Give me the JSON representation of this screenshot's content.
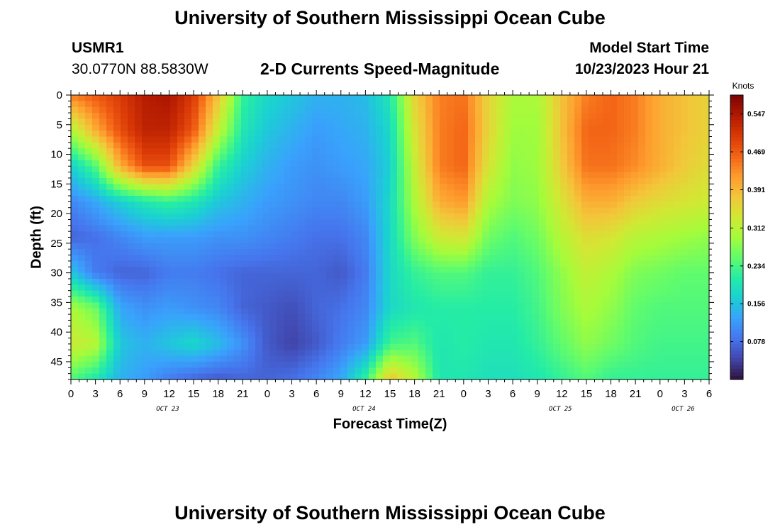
{
  "header": {
    "title": "University of Southern Mississippi Ocean Cube",
    "station_id": "USMR1",
    "coords": "30.0770N  88.5830W",
    "subtitle": "2-D Currents Speed-Magnitude",
    "start_label": "Model Start Time",
    "start_value": "10/23/2023 Hour 21"
  },
  "footer": {
    "title": "University of Southern Mississippi Ocean Cube"
  },
  "chart_data": {
    "type": "heatmap",
    "title": "2-D Currents Speed-Magnitude",
    "xlabel": "Forecast Time(Z)",
    "ylabel": "Depth (ft)",
    "x_tick_labels": [
      "0",
      "3",
      "6",
      "9",
      "12",
      "15",
      "18",
      "21",
      "0",
      "3",
      "6",
      "9",
      "12",
      "15",
      "18",
      "21",
      "0",
      "3",
      "6",
      "9",
      "12",
      "15",
      "18",
      "21",
      "0",
      "3",
      "6"
    ],
    "x_date_labels": [
      {
        "label": "OCT 23",
        "tick_index": 4
      },
      {
        "label": "OCT 24",
        "tick_index": 12
      },
      {
        "label": "OCT 25",
        "tick_index": 20
      },
      {
        "label": "OCT 26",
        "tick_index": 25
      }
    ],
    "y_ticks": [
      0,
      5,
      10,
      15,
      20,
      25,
      30,
      35,
      40,
      45
    ],
    "y_range": [
      0,
      48
    ],
    "x_range_hours": [
      0,
      78
    ],
    "colorbar": {
      "unit": "Knots",
      "ticks": [
        "0.547",
        "0.469",
        "0.391",
        "0.312",
        "0.234",
        "0.156",
        "0.078"
      ],
      "range": [
        0.0,
        0.586
      ],
      "colors": [
        "#30123b",
        "#4145ab",
        "#4675ed",
        "#39a2fc",
        "#1bcfd4",
        "#24eca6",
        "#61fc6c",
        "#a4fc3b",
        "#d1e834",
        "#f3c63a",
        "#fe9b2d",
        "#f36315",
        "#d93806",
        "#b11901",
        "#7a0403"
      ]
    },
    "depth_ft": [
      0,
      6,
      12,
      18,
      24,
      30,
      36,
      42,
      48
    ],
    "time_hours": [
      0,
      3,
      6,
      9,
      12,
      15,
      18,
      21,
      24,
      27,
      30,
      33,
      36,
      39,
      42,
      45,
      48,
      51,
      54,
      57,
      60,
      63,
      66,
      69,
      72,
      75,
      78
    ],
    "speed_knots": [
      [
        0.44,
        0.47,
        0.5,
        0.54,
        0.55,
        0.5,
        0.38,
        0.22,
        0.18,
        0.16,
        0.14,
        0.14,
        0.15,
        0.2,
        0.36,
        0.44,
        0.45,
        0.36,
        0.3,
        0.3,
        0.38,
        0.44,
        0.46,
        0.44,
        0.4,
        0.38,
        0.36
      ],
      [
        0.3,
        0.4,
        0.48,
        0.53,
        0.53,
        0.47,
        0.32,
        0.2,
        0.16,
        0.14,
        0.12,
        0.13,
        0.14,
        0.18,
        0.34,
        0.44,
        0.46,
        0.36,
        0.29,
        0.29,
        0.38,
        0.46,
        0.46,
        0.44,
        0.4,
        0.38,
        0.36
      ],
      [
        0.17,
        0.24,
        0.4,
        0.48,
        0.48,
        0.36,
        0.22,
        0.17,
        0.14,
        0.12,
        0.11,
        0.12,
        0.13,
        0.17,
        0.32,
        0.44,
        0.46,
        0.34,
        0.28,
        0.29,
        0.37,
        0.45,
        0.45,
        0.43,
        0.4,
        0.37,
        0.35
      ],
      [
        0.1,
        0.13,
        0.17,
        0.2,
        0.22,
        0.2,
        0.16,
        0.14,
        0.12,
        0.11,
        0.1,
        0.1,
        0.12,
        0.18,
        0.3,
        0.4,
        0.42,
        0.3,
        0.27,
        0.28,
        0.34,
        0.4,
        0.4,
        0.37,
        0.35,
        0.34,
        0.33
      ],
      [
        0.07,
        0.08,
        0.1,
        0.12,
        0.12,
        0.12,
        0.11,
        0.11,
        0.1,
        0.09,
        0.08,
        0.08,
        0.1,
        0.18,
        0.27,
        0.33,
        0.34,
        0.26,
        0.24,
        0.26,
        0.31,
        0.35,
        0.34,
        0.31,
        0.3,
        0.29,
        0.28
      ],
      [
        0.16,
        0.09,
        0.07,
        0.07,
        0.09,
        0.09,
        0.08,
        0.07,
        0.07,
        0.07,
        0.07,
        0.06,
        0.09,
        0.18,
        0.22,
        0.24,
        0.24,
        0.22,
        0.22,
        0.24,
        0.28,
        0.32,
        0.3,
        0.27,
        0.26,
        0.25,
        0.25
      ],
      [
        0.3,
        0.26,
        0.13,
        0.11,
        0.12,
        0.11,
        0.1,
        0.07,
        0.06,
        0.05,
        0.07,
        0.08,
        0.1,
        0.18,
        0.2,
        0.21,
        0.21,
        0.21,
        0.21,
        0.23,
        0.27,
        0.3,
        0.28,
        0.25,
        0.24,
        0.24,
        0.24
      ],
      [
        0.33,
        0.31,
        0.16,
        0.14,
        0.16,
        0.18,
        0.15,
        0.11,
        0.06,
        0.04,
        0.06,
        0.09,
        0.12,
        0.23,
        0.24,
        0.2,
        0.21,
        0.2,
        0.2,
        0.22,
        0.25,
        0.28,
        0.26,
        0.24,
        0.23,
        0.23,
        0.23
      ],
      [
        0.24,
        0.2,
        0.14,
        0.12,
        0.09,
        0.07,
        0.06,
        0.07,
        0.07,
        0.08,
        0.1,
        0.13,
        0.22,
        0.38,
        0.31,
        0.2,
        0.2,
        0.19,
        0.19,
        0.2,
        0.22,
        0.24,
        0.22,
        0.22,
        0.22,
        0.22,
        0.22
      ]
    ]
  }
}
